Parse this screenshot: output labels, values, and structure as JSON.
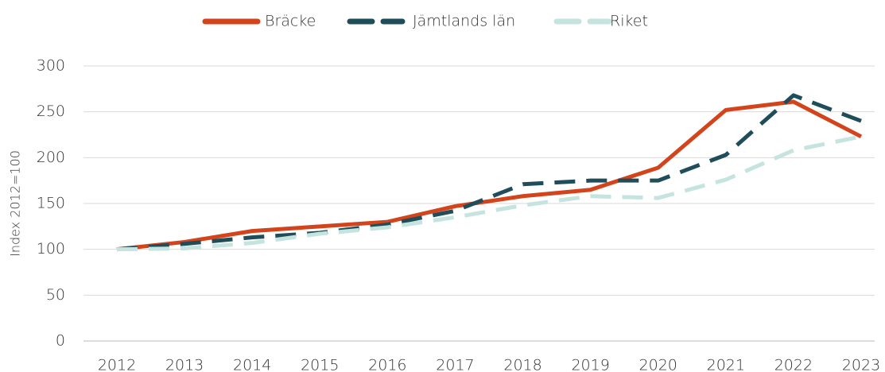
{
  "chart_data": {
    "type": "line",
    "categories": [
      "2012",
      "2013",
      "2014",
      "2015",
      "2016",
      "2017",
      "2018",
      "2019",
      "2020",
      "2021",
      "2022",
      "2023"
    ],
    "y_label": "Index 2012=100",
    "ylim": [
      0,
      300
    ],
    "yticks": [
      0,
      50,
      100,
      150,
      200,
      250,
      300
    ],
    "grid": true,
    "legend": "top",
    "series": [
      {
        "name": "Bräcke",
        "color": "#d4441c",
        "line_style": "solid",
        "values": [
          100,
          108,
          120,
          125,
          130,
          147,
          158,
          165,
          189,
          252,
          261,
          223
        ]
      },
      {
        "name": "Jämtlands län",
        "color": "#1f4e5a",
        "line_style": "dashed",
        "values": [
          100,
          106,
          113,
          118,
          127,
          142,
          171,
          175,
          175,
          203,
          268,
          240
        ]
      },
      {
        "name": "Riket",
        "color": "#c5e3df",
        "line_style": "dashed",
        "values": [
          100,
          101,
          107,
          117,
          124,
          135,
          148,
          158,
          156,
          176,
          208,
          223
        ]
      }
    ]
  }
}
